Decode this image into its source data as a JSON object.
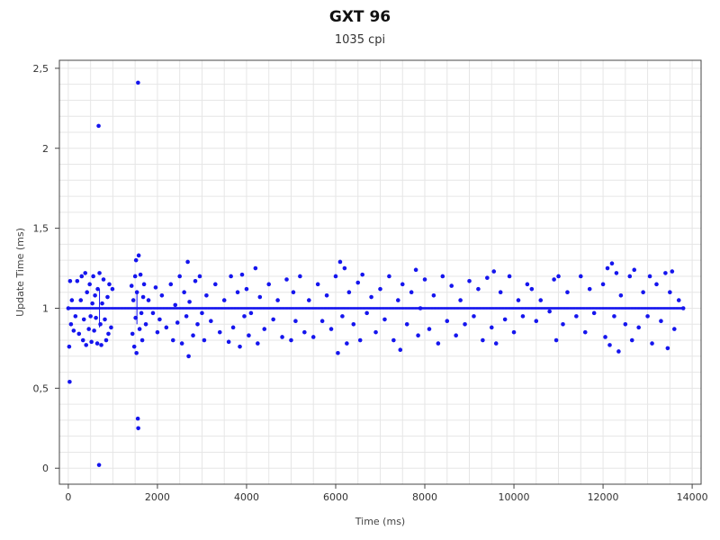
{
  "chart_data": {
    "type": "scatter",
    "title": "GXT 96",
    "subtitle": "1035 cpi",
    "xlabel": "Time (ms)",
    "ylabel": "Update Time (ms)",
    "xlim": [
      -200,
      14200
    ],
    "ylim": [
      -0.1,
      2.55
    ],
    "xticks": [
      0,
      2000,
      4000,
      6000,
      8000,
      10000,
      12000,
      14000
    ],
    "xtick_labels": [
      "0",
      "2000",
      "4000",
      "6000",
      "8000",
      "10000",
      "12000",
      "14000"
    ],
    "yticks": [
      0,
      0.5,
      1,
      1.5,
      2,
      2.5
    ],
    "ytick_labels": [
      "0",
      "0,5",
      "1",
      "1,5",
      "2",
      "2,5"
    ],
    "grid": true,
    "point_color": "#1515ee",
    "series": [
      {
        "points": [
          [
            0,
            1.0
          ],
          [
            20,
            0.76
          ],
          [
            30,
            0.54
          ],
          [
            40,
            1.17
          ],
          [
            60,
            0.9
          ],
          [
            80,
            1.05
          ],
          [
            120,
            0.86
          ],
          [
            160,
            0.95
          ],
          [
            200,
            1.17
          ],
          [
            240,
            0.84
          ],
          [
            280,
            1.05
          ],
          [
            300,
            1.2
          ],
          [
            330,
            0.8
          ],
          [
            350,
            0.93
          ],
          [
            380,
            1.22
          ],
          [
            400,
            0.77
          ],
          [
            420,
            1.1
          ],
          [
            460,
            0.87
          ],
          [
            480,
            1.15
          ],
          [
            500,
            0.95
          ],
          [
            520,
            0.79
          ],
          [
            540,
            1.03
          ],
          [
            560,
            1.2
          ],
          [
            580,
            0.86
          ],
          [
            600,
            1.08
          ],
          [
            620,
            0.94
          ],
          [
            650,
            0.78
          ],
          [
            660,
            1.12
          ],
          [
            680,
            2.14
          ],
          [
            690,
            0.02
          ],
          [
            700,
            1.22
          ],
          [
            720,
            0.9
          ],
          [
            740,
            0.77
          ],
          [
            760,
            1.03
          ],
          [
            790,
            1.18
          ],
          [
            820,
            0.93
          ],
          [
            850,
            0.8
          ],
          [
            880,
            1.07
          ],
          [
            900,
            0.84
          ],
          [
            920,
            1.15
          ],
          [
            960,
            0.88
          ],
          [
            990,
            1.12
          ],
          [
            1420,
            1.14
          ],
          [
            1440,
            0.84
          ],
          [
            1460,
            1.05
          ],
          [
            1480,
            0.76
          ],
          [
            1500,
            1.2
          ],
          [
            1510,
            0.94
          ],
          [
            1520,
            1.3
          ],
          [
            1530,
            0.72
          ],
          [
            1540,
            1.1
          ],
          [
            1560,
            0.31
          ],
          [
            1565,
            2.41
          ],
          [
            1570,
            0.25
          ],
          [
            1580,
            1.33
          ],
          [
            1600,
            0.87
          ],
          [
            1620,
            1.21
          ],
          [
            1640,
            0.97
          ],
          [
            1660,
            0.8
          ],
          [
            1680,
            1.07
          ],
          [
            1700,
            1.15
          ],
          [
            1740,
            0.9
          ],
          [
            1800,
            1.05
          ],
          [
            1900,
            0.97
          ],
          [
            1960,
            1.13
          ],
          [
            2000,
            0.85
          ],
          [
            2050,
            0.93
          ],
          [
            2100,
            1.08
          ],
          [
            2200,
            0.88
          ],
          [
            2300,
            1.15
          ],
          [
            2350,
            0.8
          ],
          [
            2400,
            1.02
          ],
          [
            2450,
            0.91
          ],
          [
            2500,
            1.2
          ],
          [
            2550,
            0.78
          ],
          [
            2600,
            1.1
          ],
          [
            2650,
            0.95
          ],
          [
            2680,
            1.29
          ],
          [
            2700,
            0.7
          ],
          [
            2720,
            1.04
          ],
          [
            2800,
            0.83
          ],
          [
            2850,
            1.17
          ],
          [
            2900,
            0.9
          ],
          [
            2950,
            1.2
          ],
          [
            3000,
            0.97
          ],
          [
            3050,
            0.8
          ],
          [
            3100,
            1.08
          ],
          [
            3200,
            0.92
          ],
          [
            3300,
            1.15
          ],
          [
            3400,
            0.85
          ],
          [
            3500,
            1.05
          ],
          [
            3600,
            0.79
          ],
          [
            3650,
            1.2
          ],
          [
            3700,
            0.88
          ],
          [
            3800,
            1.1
          ],
          [
            3850,
            0.76
          ],
          [
            3900,
            1.21
          ],
          [
            3950,
            0.95
          ],
          [
            4000,
            1.12
          ],
          [
            4050,
            0.83
          ],
          [
            4100,
            0.97
          ],
          [
            4200,
            1.25
          ],
          [
            4250,
            0.78
          ],
          [
            4300,
            1.07
          ],
          [
            4400,
            0.87
          ],
          [
            4500,
            1.15
          ],
          [
            4600,
            0.93
          ],
          [
            4700,
            1.05
          ],
          [
            4800,
            0.82
          ],
          [
            4900,
            1.18
          ],
          [
            5000,
            0.8
          ],
          [
            5050,
            1.1
          ],
          [
            5100,
            0.92
          ],
          [
            5200,
            1.2
          ],
          [
            5300,
            0.85
          ],
          [
            5400,
            1.05
          ],
          [
            5500,
            0.82
          ],
          [
            5600,
            1.15
          ],
          [
            5700,
            0.92
          ],
          [
            5800,
            1.08
          ],
          [
            5900,
            0.87
          ],
          [
            6000,
            1.2
          ],
          [
            6050,
            0.72
          ],
          [
            6100,
            1.29
          ],
          [
            6150,
            0.95
          ],
          [
            6200,
            1.25
          ],
          [
            6250,
            0.78
          ],
          [
            6300,
            1.1
          ],
          [
            6400,
            0.9
          ],
          [
            6500,
            1.16
          ],
          [
            6550,
            0.8
          ],
          [
            6600,
            1.21
          ],
          [
            6700,
            0.97
          ],
          [
            6800,
            1.07
          ],
          [
            6900,
            0.85
          ],
          [
            7000,
            1.12
          ],
          [
            7100,
            0.93
          ],
          [
            7200,
            1.2
          ],
          [
            7300,
            0.8
          ],
          [
            7400,
            1.05
          ],
          [
            7450,
            0.74
          ],
          [
            7500,
            1.15
          ],
          [
            7600,
            0.9
          ],
          [
            7700,
            1.1
          ],
          [
            7800,
            1.24
          ],
          [
            7850,
            0.83
          ],
          [
            7900,
            1.0
          ],
          [
            8000,
            1.18
          ],
          [
            8100,
            0.87
          ],
          [
            8200,
            1.08
          ],
          [
            8300,
            0.78
          ],
          [
            8400,
            1.2
          ],
          [
            8500,
            0.92
          ],
          [
            8600,
            1.14
          ],
          [
            8700,
            0.83
          ],
          [
            8800,
            1.05
          ],
          [
            8900,
            0.9
          ],
          [
            9000,
            1.17
          ],
          [
            9100,
            0.95
          ],
          [
            9200,
            1.12
          ],
          [
            9300,
            0.8
          ],
          [
            9400,
            1.19
          ],
          [
            9500,
            0.88
          ],
          [
            9550,
            1.23
          ],
          [
            9600,
            0.78
          ],
          [
            9700,
            1.1
          ],
          [
            9800,
            0.93
          ],
          [
            9900,
            1.2
          ],
          [
            10000,
            0.85
          ],
          [
            10100,
            1.05
          ],
          [
            10200,
            0.95
          ],
          [
            10300,
            1.15
          ],
          [
            10400,
            1.12
          ],
          [
            10500,
            0.92
          ],
          [
            10600,
            1.05
          ],
          [
            10800,
            0.98
          ],
          [
            10900,
            1.18
          ],
          [
            10950,
            0.8
          ],
          [
            11000,
            1.2
          ],
          [
            11100,
            0.9
          ],
          [
            11200,
            1.1
          ],
          [
            11400,
            0.95
          ],
          [
            11500,
            1.2
          ],
          [
            11600,
            0.85
          ],
          [
            11700,
            1.12
          ],
          [
            11800,
            0.97
          ],
          [
            12000,
            1.15
          ],
          [
            12050,
            0.82
          ],
          [
            12100,
            1.25
          ],
          [
            12150,
            0.77
          ],
          [
            12200,
            1.28
          ],
          [
            12250,
            0.95
          ],
          [
            12300,
            1.22
          ],
          [
            12350,
            0.73
          ],
          [
            12400,
            1.08
          ],
          [
            12500,
            0.9
          ],
          [
            12600,
            1.2
          ],
          [
            12650,
            0.8
          ],
          [
            12700,
            1.24
          ],
          [
            12800,
            0.88
          ],
          [
            12900,
            1.1
          ],
          [
            13000,
            0.95
          ],
          [
            13050,
            1.2
          ],
          [
            13100,
            0.78
          ],
          [
            13200,
            1.15
          ],
          [
            13300,
            0.92
          ],
          [
            13400,
            1.22
          ],
          [
            13450,
            0.75
          ],
          [
            13500,
            1.1
          ],
          [
            13550,
            1.23
          ],
          [
            13600,
            0.87
          ],
          [
            13700,
            1.05
          ],
          [
            13800,
            1.0
          ]
        ]
      }
    ]
  }
}
